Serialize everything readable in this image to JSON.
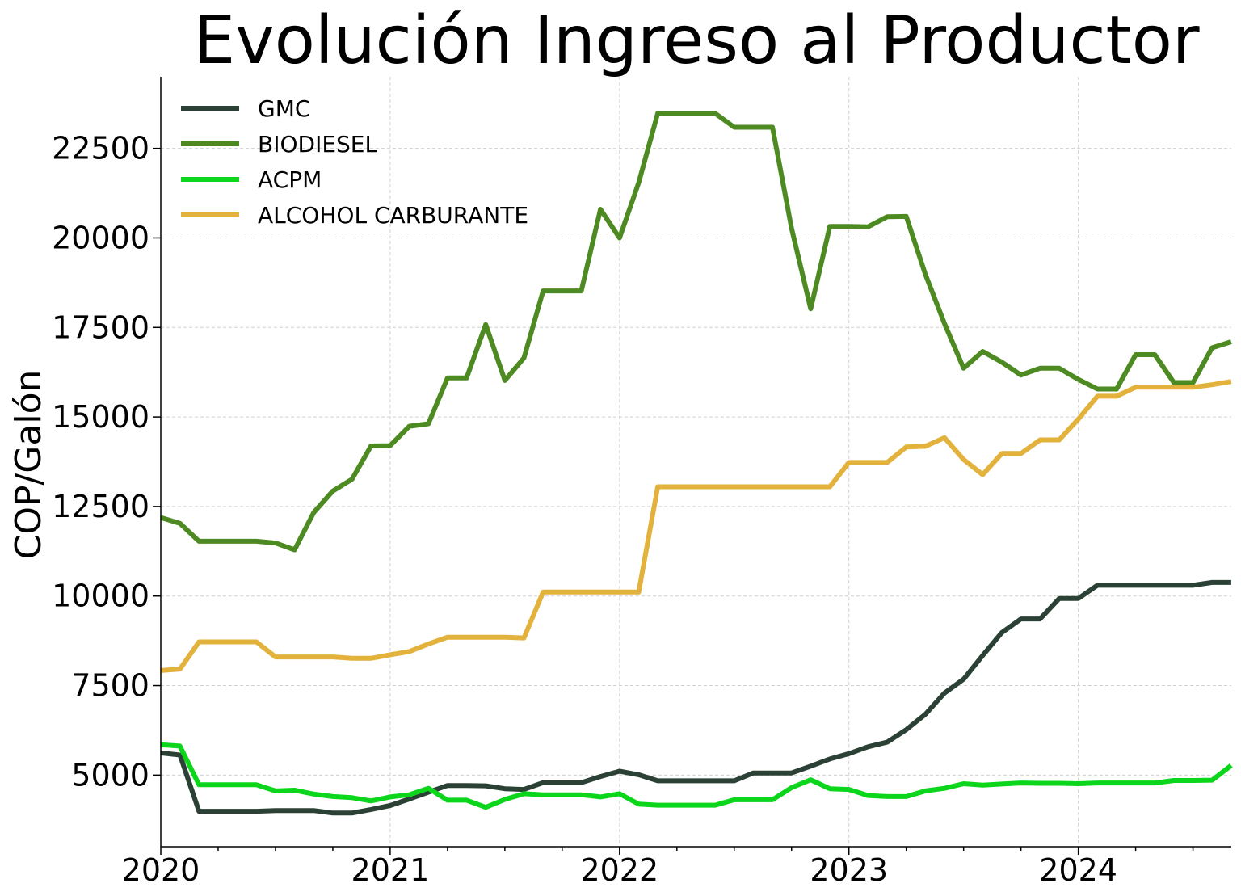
{
  "chart_data": {
    "type": "line",
    "title": "Evolución Ingreso al Productor",
    "xlabel": "",
    "ylabel": "COP/Galón",
    "xlim": [
      2020.0,
      2024.667
    ],
    "ylim": [
      3000,
      24500
    ],
    "x_ticks": [
      2020,
      2021,
      2022,
      2023,
      2024
    ],
    "x_tick_labels": [
      "2020",
      "2021",
      "2022",
      "2023",
      "2024"
    ],
    "y_ticks": [
      5000,
      7500,
      10000,
      12500,
      15000,
      17500,
      20000,
      22500
    ],
    "y_tick_labels": [
      "5000",
      "7500",
      "10000",
      "12500",
      "15000",
      "17500",
      "20000",
      "22500"
    ],
    "grid": true,
    "legend_position": "top-left",
    "x_months": [
      "2020-01",
      "2020-02",
      "2020-03",
      "2020-04",
      "2020-05",
      "2020-06",
      "2020-07",
      "2020-08",
      "2020-09",
      "2020-10",
      "2020-11",
      "2020-12",
      "2021-01",
      "2021-02",
      "2021-03",
      "2021-04",
      "2021-05",
      "2021-06",
      "2021-07",
      "2021-08",
      "2021-09",
      "2021-10",
      "2021-11",
      "2021-12",
      "2022-01",
      "2022-02",
      "2022-03",
      "2022-04",
      "2022-05",
      "2022-06",
      "2022-07",
      "2022-08",
      "2022-09",
      "2022-10",
      "2022-11",
      "2022-12",
      "2023-01",
      "2023-02",
      "2023-03",
      "2023-04",
      "2023-05",
      "2023-06",
      "2023-07",
      "2023-08",
      "2023-09",
      "2023-10",
      "2023-11",
      "2023-12",
      "2024-01",
      "2024-02",
      "2024-03",
      "2024-04",
      "2024-05",
      "2024-06",
      "2024-07",
      "2024-08",
      "2024-09"
    ],
    "series": [
      {
        "name": "GMC",
        "color": "#2b4136",
        "values": [
          5620,
          5560,
          3990,
          3990,
          3990,
          3990,
          4010,
          4010,
          4010,
          3940,
          3940,
          4040,
          4150,
          4330,
          4520,
          4710,
          4710,
          4700,
          4620,
          4600,
          4790,
          4790,
          4790,
          4960,
          5110,
          5010,
          4840,
          4840,
          4840,
          4840,
          4840,
          5060,
          5060,
          5060,
          5250,
          5450,
          5600,
          5790,
          5920,
          6270,
          6700,
          7290,
          7680,
          8340,
          8980,
          9360,
          9360,
          9930,
          9930,
          10300,
          10300,
          10300,
          10300,
          10300,
          10300,
          10380,
          10380
        ]
      },
      {
        "name": "BIODIESEL",
        "color": "#4e8a22",
        "values": [
          12190,
          12030,
          11530,
          11530,
          11530,
          11530,
          11480,
          11290,
          12330,
          12930,
          13260,
          14190,
          14200,
          14740,
          14810,
          16090,
          16090,
          17580,
          16020,
          16650,
          18520,
          18520,
          18520,
          20800,
          20000,
          21540,
          23480,
          23480,
          23480,
          23480,
          23090,
          23090,
          23090,
          20270,
          18020,
          20320,
          20320,
          20310,
          20590,
          20600,
          18980,
          17610,
          16360,
          16830,
          16530,
          16170,
          16360,
          16360,
          16050,
          15780,
          15780,
          16740,
          16740,
          15960,
          15960,
          16930,
          17100
        ]
      },
      {
        "name": "ACPM",
        "color": "#0bd61b",
        "values": [
          5850,
          5810,
          4730,
          4730,
          4730,
          4730,
          4560,
          4580,
          4470,
          4400,
          4370,
          4280,
          4390,
          4450,
          4630,
          4300,
          4300,
          4100,
          4320,
          4480,
          4450,
          4450,
          4450,
          4390,
          4480,
          4190,
          4160,
          4160,
          4160,
          4160,
          4310,
          4310,
          4310,
          4650,
          4870,
          4620,
          4600,
          4430,
          4400,
          4400,
          4560,
          4630,
          4760,
          4720,
          4750,
          4780,
          4770,
          4770,
          4760,
          4780,
          4780,
          4780,
          4780,
          4850,
          4850,
          4860,
          5270
        ]
      },
      {
        "name": "ALCOHOL CARBURANTE",
        "color": "#e3b23c",
        "values": [
          7920,
          7960,
          8720,
          8720,
          8720,
          8720,
          8300,
          8300,
          8300,
          8300,
          8260,
          8260,
          8360,
          8450,
          8660,
          8850,
          8850,
          8850,
          8850,
          8830,
          10110,
          10110,
          10110,
          10110,
          10110,
          10110,
          13050,
          13050,
          13050,
          13050,
          13050,
          13050,
          13050,
          13050,
          13050,
          13050,
          13730,
          13730,
          13730,
          14160,
          14180,
          14420,
          13810,
          13390,
          13980,
          13980,
          14360,
          14360,
          14940,
          15580,
          15580,
          15830,
          15830,
          15830,
          15830,
          15900,
          15990
        ]
      }
    ]
  }
}
